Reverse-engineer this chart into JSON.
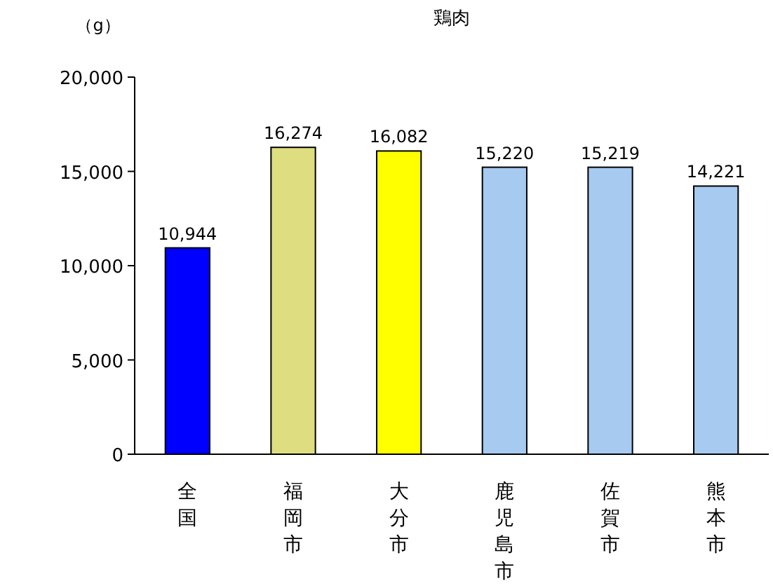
{
  "chart_data": {
    "type": "bar",
    "title": "鶏肉",
    "ylabel": "（g）",
    "categories": [
      "全国",
      "福岡市",
      "大分市",
      "鹿児島市",
      "佐賀市",
      "熊本市"
    ],
    "values": [
      10944,
      16274,
      16082,
      15220,
      15219,
      14221
    ],
    "colors": [
      "#0000ff",
      "#dede80",
      "#ffff00",
      "#a6caf0",
      "#a6caf0",
      "#a6caf0"
    ],
    "value_labels": [
      "10,944",
      "16,274",
      "16,082",
      "15,220",
      "15,219",
      "14,221"
    ],
    "ylim": [
      0,
      20000
    ],
    "yticks": [
      {
        "value": 0,
        "label": "0"
      },
      {
        "value": 5000,
        "label": "5,000"
      },
      {
        "value": 10000,
        "label": "10,000"
      },
      {
        "value": 15000,
        "label": "15,000"
      },
      {
        "value": 20000,
        "label": "20,000"
      }
    ],
    "grid": false
  }
}
